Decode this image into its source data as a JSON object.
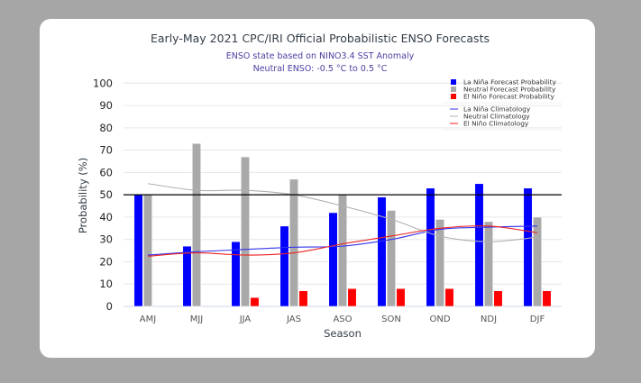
{
  "chart_data": {
    "type": "bar",
    "title": "Early-May 2021 CPC/IRI Official Probabilistic ENSO Forecasts",
    "subtitle": [
      "ENSO state based on NINO3.4 SST Anomaly",
      "Neutral ENSO: -0.5 °C to 0.5 °C"
    ],
    "xlabel": "Season",
    "ylabel": "Probability (%)",
    "ylim": [
      0,
      100
    ],
    "yticks": [
      0,
      10,
      20,
      30,
      40,
      50,
      60,
      70,
      80,
      90,
      100
    ],
    "grid": true,
    "reference_line": {
      "y": 50,
      "color": "#000000"
    },
    "legend_position": "top-right",
    "categories": [
      "AMJ",
      "MJJ",
      "JJA",
      "JAS",
      "ASO",
      "SON",
      "OND",
      "NDJ",
      "DJF"
    ],
    "series": [
      {
        "name": "La Niña Forecast Probability",
        "kind": "bar",
        "color": "#0000ff",
        "values": [
          50,
          27,
          29,
          36,
          42,
          49,
          53,
          55,
          53
        ]
      },
      {
        "name": "Neutral Forecast Probability",
        "kind": "bar",
        "color": "#a9a9a9",
        "values": [
          50,
          73,
          67,
          57,
          50,
          43,
          39,
          38,
          40
        ]
      },
      {
        "name": "El Niño Forecast Probability",
        "kind": "bar",
        "color": "#ff0000",
        "values": [
          0,
          0,
          4,
          7,
          8,
          8,
          8,
          7,
          7
        ]
      },
      {
        "name": "La Niña Climatology",
        "kind": "line",
        "color": "#3333ee",
        "values": [
          23,
          24.5,
          25.5,
          26.5,
          27,
          30,
          34.5,
          35.5,
          36
        ]
      },
      {
        "name": "Neutral Climatology",
        "kind": "line",
        "color": "#b0b0b0",
        "values": [
          55,
          52,
          52,
          50,
          45,
          39,
          31.5,
          29,
          31
        ]
      },
      {
        "name": "El Niño Climatology",
        "kind": "line",
        "color": "#ee2222",
        "values": [
          22.5,
          24,
          23,
          24,
          28,
          31.5,
          35,
          36,
          33
        ]
      }
    ]
  }
}
